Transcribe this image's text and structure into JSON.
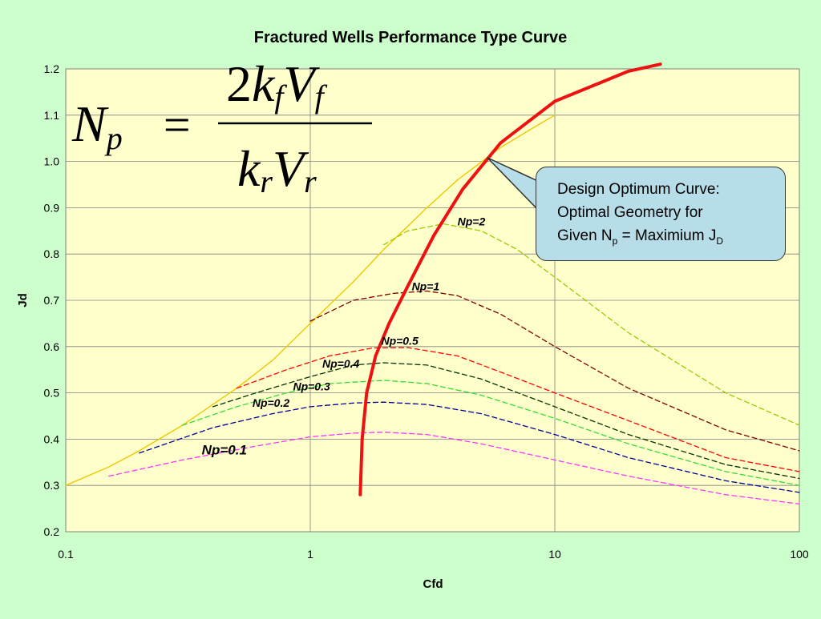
{
  "chart_data": {
    "type": "line",
    "title": "Fractured Wells Performance Type Curve",
    "xlabel": "Cfd",
    "ylabel": "Jd",
    "x_scale": "log",
    "xlim": [
      0.1,
      100
    ],
    "ylim": [
      0.2,
      1.2
    ],
    "x_ticks": [
      "0.1",
      "1",
      "10",
      "100"
    ],
    "y_ticks": [
      "0.2",
      "0.3",
      "0.4",
      "0.5",
      "0.6",
      "0.7",
      "0.8",
      "0.9",
      "1.0",
      "1.1",
      "1.2"
    ],
    "grid": true,
    "series": [
      {
        "name": "",
        "color": "#f0c800",
        "width": 1.4,
        "dash": "",
        "points": [
          [
            0.1,
            0.3
          ],
          [
            0.15,
            0.34
          ],
          [
            0.2,
            0.375
          ],
          [
            0.3,
            0.43
          ],
          [
            0.5,
            0.51
          ],
          [
            0.7,
            0.57
          ],
          [
            1,
            0.65
          ],
          [
            1.5,
            0.74
          ],
          [
            2,
            0.81
          ],
          [
            3,
            0.9
          ],
          [
            4,
            0.96
          ],
          [
            6,
            1.03
          ],
          [
            8,
            1.07
          ],
          [
            10,
            1.1
          ]
        ]
      },
      {
        "name": "Np=0.1",
        "color": "#ff33ff",
        "width": 1.3,
        "dash": "6,4",
        "points": [
          [
            0.15,
            0.32
          ],
          [
            0.3,
            0.355
          ],
          [
            0.6,
            0.385
          ],
          [
            1,
            0.405
          ],
          [
            1.5,
            0.413
          ],
          [
            2,
            0.415
          ],
          [
            3,
            0.41
          ],
          [
            5,
            0.39
          ],
          [
            10,
            0.355
          ],
          [
            20,
            0.32
          ],
          [
            50,
            0.28
          ],
          [
            100,
            0.26
          ]
        ]
      },
      {
        "name": "Np=0.2",
        "color": "#000099",
        "width": 1.3,
        "dash": "6,4",
        "points": [
          [
            0.2,
            0.37
          ],
          [
            0.4,
            0.425
          ],
          [
            0.7,
            0.455
          ],
          [
            1,
            0.47
          ],
          [
            1.5,
            0.478
          ],
          [
            2,
            0.48
          ],
          [
            3,
            0.475
          ],
          [
            5,
            0.455
          ],
          [
            10,
            0.41
          ],
          [
            20,
            0.36
          ],
          [
            50,
            0.31
          ],
          [
            100,
            0.285
          ]
        ]
      },
      {
        "name": "Np=0.3",
        "color": "#33dd33",
        "width": 1.3,
        "dash": "6,4",
        "points": [
          [
            0.3,
            0.43
          ],
          [
            0.5,
            0.47
          ],
          [
            0.8,
            0.5
          ],
          [
            1.2,
            0.52
          ],
          [
            2,
            0.527
          ],
          [
            3,
            0.52
          ],
          [
            5,
            0.495
          ],
          [
            10,
            0.445
          ],
          [
            20,
            0.39
          ],
          [
            50,
            0.33
          ],
          [
            100,
            0.3
          ]
        ]
      },
      {
        "name": "Np=0.4",
        "color": "#003300",
        "width": 1.3,
        "dash": "6,4",
        "points": [
          [
            0.4,
            0.47
          ],
          [
            0.6,
            0.5
          ],
          [
            1,
            0.535
          ],
          [
            1.5,
            0.56
          ],
          [
            2,
            0.565
          ],
          [
            3,
            0.56
          ],
          [
            5,
            0.53
          ],
          [
            10,
            0.47
          ],
          [
            20,
            0.41
          ],
          [
            50,
            0.345
          ],
          [
            100,
            0.315
          ]
        ]
      },
      {
        "name": "Np=0.5",
        "color": "#ff0000",
        "width": 1.3,
        "dash": "6,4",
        "points": [
          [
            0.5,
            0.51
          ],
          [
            0.8,
            0.55
          ],
          [
            1.2,
            0.58
          ],
          [
            1.8,
            0.597
          ],
          [
            2.5,
            0.598
          ],
          [
            4,
            0.58
          ],
          [
            6,
            0.545
          ],
          [
            10,
            0.5
          ],
          [
            20,
            0.44
          ],
          [
            50,
            0.36
          ],
          [
            100,
            0.33
          ]
        ]
      },
      {
        "name": "Np=1",
        "color": "#800000",
        "width": 1.3,
        "dash": "6,4",
        "points": [
          [
            1,
            0.655
          ],
          [
            1.5,
            0.7
          ],
          [
            2.2,
            0.715
          ],
          [
            3,
            0.72
          ],
          [
            4,
            0.71
          ],
          [
            6,
            0.67
          ],
          [
            10,
            0.6
          ],
          [
            20,
            0.51
          ],
          [
            50,
            0.42
          ],
          [
            100,
            0.375
          ]
        ]
      },
      {
        "name": "Np=2",
        "color": "#99cc00",
        "width": 1.3,
        "dash": "6,4",
        "points": [
          [
            2,
            0.82
          ],
          [
            2.5,
            0.85
          ],
          [
            3.5,
            0.865
          ],
          [
            5,
            0.85
          ],
          [
            7,
            0.81
          ],
          [
            10,
            0.75
          ],
          [
            20,
            0.63
          ],
          [
            50,
            0.5
          ],
          [
            100,
            0.43
          ]
        ]
      },
      {
        "name": "Design Optimum Curve",
        "color": "#ee1111",
        "width": 4,
        "dash": "",
        "points": [
          [
            1.6,
            0.28
          ],
          [
            1.63,
            0.4
          ],
          [
            1.7,
            0.5
          ],
          [
            1.85,
            0.58
          ],
          [
            2.1,
            0.65
          ],
          [
            2.5,
            0.73
          ],
          [
            3.2,
            0.84
          ],
          [
            4.2,
            0.94
          ],
          [
            6,
            1.04
          ],
          [
            10,
            1.13
          ],
          [
            20,
            1.195
          ],
          [
            27,
            1.21
          ]
        ]
      }
    ],
    "annotations": [
      {
        "text": "Np=0.1",
        "x": 0.36,
        "y": 0.367,
        "style": "big"
      },
      {
        "text": "Np=0.2",
        "x": 0.58,
        "y": 0.47,
        "style": "normal"
      },
      {
        "text": "Np=0.3",
        "x": 0.85,
        "y": 0.505,
        "style": "normal"
      },
      {
        "text": "Np=0.4",
        "x": 1.12,
        "y": 0.555,
        "style": "normal"
      },
      {
        "text": "Np=0.5",
        "x": 1.95,
        "y": 0.604,
        "style": "normal"
      },
      {
        "text": "Np=1",
        "x": 2.6,
        "y": 0.722,
        "style": "normal"
      },
      {
        "text": "Np=2",
        "x": 4.0,
        "y": 0.862,
        "style": "normal"
      }
    ]
  },
  "formula": {
    "lhs": "N",
    "lhs_sub": "p",
    "eq": "=",
    "num_coef": "2",
    "num_k": "k",
    "num_k_sub": "f",
    "num_v": "V",
    "num_v_sub": "f",
    "den_k": "k",
    "den_k_sub": "r",
    "den_v": "V",
    "den_v_sub": "r"
  },
  "callout": {
    "line1": "Design Optimum Curve:",
    "line2": "Optimal Geometry for",
    "line3_prefix": "Given N",
    "line3_sub1": "p",
    "line3_mid": " = Maximium J",
    "line3_sub2": "D"
  }
}
